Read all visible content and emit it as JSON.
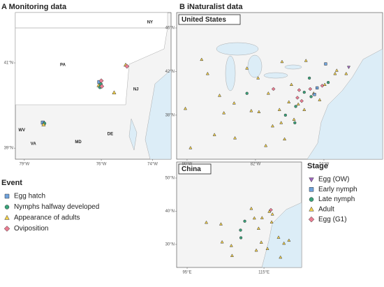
{
  "panels": [
    {
      "title": "A Monitoring data",
      "lonlim": [
        -79.35,
        -73.28
      ],
      "latlim": [
        38.74,
        42.18
      ],
      "xticks": [
        {
          "value": -79,
          "label": "79°W"
        },
        {
          "value": -76,
          "label": "76°W"
        },
        {
          "value": -74,
          "label": "74°W"
        }
      ],
      "yticks": [
        {
          "value": 41,
          "label": "41°N"
        },
        {
          "value": 39,
          "label": "39°N"
        }
      ],
      "labels": [
        {
          "text": "NY",
          "lon": -74.1,
          "lat": 41.95
        },
        {
          "text": "PA",
          "lon": -77.5,
          "lat": 40.95
        },
        {
          "text": "NJ",
          "lon": -74.65,
          "lat": 40.38
        },
        {
          "text": "WV",
          "lon": -79.1,
          "lat": 39.42
        },
        {
          "text": "VA",
          "lon": -78.65,
          "lat": 39.1
        },
        {
          "text": "MD",
          "lon": -76.9,
          "lat": 39.14
        },
        {
          "text": "DE",
          "lon": -75.65,
          "lat": 39.33
        }
      ],
      "points": [
        {
          "lon": -76.08,
          "lat": 40.55,
          "kind": "Egg hatch"
        },
        {
          "lon": -76.02,
          "lat": 40.5,
          "kind": "Nymphs halfway developed"
        },
        {
          "lon": -76.1,
          "lat": 40.47,
          "kind": "Appearance of adults"
        },
        {
          "lon": -76.0,
          "lat": 40.58,
          "kind": "Oviposition"
        },
        {
          "lon": -76.05,
          "lat": 40.43,
          "kind": "Nymphs halfway developed"
        },
        {
          "lon": -75.98,
          "lat": 40.45,
          "kind": "Oviposition"
        },
        {
          "lon": -75.05,
          "lat": 40.95,
          "kind": "Appearance of adults"
        },
        {
          "lon": -75.0,
          "lat": 40.92,
          "kind": "Oviposition"
        },
        {
          "lon": -75.5,
          "lat": 40.3,
          "kind": "Appearance of adults"
        },
        {
          "lon": -78.28,
          "lat": 39.6,
          "kind": "Egg hatch"
        },
        {
          "lon": -78.22,
          "lat": 39.58,
          "kind": "Nymphs halfway developed"
        },
        {
          "lon": -78.25,
          "lat": 39.55,
          "kind": "Appearance of adults"
        }
      ]
    },
    {
      "title": "B iNaturalist data",
      "country": "United States",
      "lonlim": [
        -91.22,
        -67.14
      ],
      "latlim": [
        33.96,
        47.41
      ],
      "xticks": [
        {
          "value": -90,
          "label": "90°W"
        },
        {
          "value": -82,
          "label": "82°W"
        },
        {
          "value": -74,
          "label": "74°W"
        }
      ],
      "yticks": [
        {
          "value": 46,
          "label": "46°N"
        },
        {
          "value": 42,
          "label": "42°N"
        },
        {
          "value": 38,
          "label": "38°N"
        }
      ],
      "points": [
        {
          "lon": -75.2,
          "lat": 40.0,
          "kind": "Adult"
        },
        {
          "lon": -75.6,
          "lat": 40.4,
          "kind": "Egg (G1)"
        },
        {
          "lon": -76.3,
          "lat": 40.1,
          "kind": "Late nymph"
        },
        {
          "lon": -74.8,
          "lat": 40.5,
          "kind": "Early nymph"
        },
        {
          "lon": -74.2,
          "lat": 40.7,
          "kind": "Egg (G1)"
        },
        {
          "lon": -73.9,
          "lat": 40.8,
          "kind": "Adult"
        },
        {
          "lon": -73.5,
          "lat": 41.0,
          "kind": "Late nymph"
        },
        {
          "lon": -77.0,
          "lat": 39.0,
          "kind": "Adult"
        },
        {
          "lon": -77.3,
          "lat": 38.8,
          "kind": "Late nymph"
        },
        {
          "lon": -76.6,
          "lat": 39.3,
          "kind": "Egg (G1)"
        },
        {
          "lon": -78.1,
          "lat": 39.2,
          "kind": "Adult"
        },
        {
          "lon": -77.5,
          "lat": 37.6,
          "kind": "Adult"
        },
        {
          "lon": -78.5,
          "lat": 38.0,
          "kind": "Late nymph"
        },
        {
          "lon": -79.0,
          "lat": 37.3,
          "kind": "Adult"
        },
        {
          "lon": -80.0,
          "lat": 37.0,
          "kind": "Adult"
        },
        {
          "lon": -79.9,
          "lat": 40.4,
          "kind": "Egg (G1)"
        },
        {
          "lon": -80.5,
          "lat": 40.0,
          "kind": "Adult"
        },
        {
          "lon": -81.7,
          "lat": 41.4,
          "kind": "Adult"
        },
        {
          "lon": -83.0,
          "lat": 40.0,
          "kind": "Late nymph"
        },
        {
          "lon": -84.5,
          "lat": 39.1,
          "kind": "Adult"
        },
        {
          "lon": -86.2,
          "lat": 39.8,
          "kind": "Adult"
        },
        {
          "lon": -87.6,
          "lat": 41.8,
          "kind": "Adult"
        },
        {
          "lon": -83.0,
          "lat": 42.3,
          "kind": "Adult"
        },
        {
          "lon": -78.9,
          "lat": 42.9,
          "kind": "Adult"
        },
        {
          "lon": -76.1,
          "lat": 43.0,
          "kind": "Adult"
        },
        {
          "lon": -73.8,
          "lat": 42.7,
          "kind": "Early nymph"
        },
        {
          "lon": -72.7,
          "lat": 41.8,
          "kind": "Adult"
        },
        {
          "lon": -71.4,
          "lat": 41.8,
          "kind": "Adult"
        },
        {
          "lon": -71.1,
          "lat": 42.4,
          "kind": "Egg (OW)"
        },
        {
          "lon": -72.5,
          "lat": 42.1,
          "kind": "Adult"
        },
        {
          "lon": -75.5,
          "lat": 39.7,
          "kind": "Late nymph"
        },
        {
          "lon": -76.9,
          "lat": 40.3,
          "kind": "Egg (G1)"
        },
        {
          "lon": -77.8,
          "lat": 40.8,
          "kind": "Adult"
        },
        {
          "lon": -76.3,
          "lat": 38.5,
          "kind": "Adult"
        },
        {
          "lon": -77.4,
          "lat": 37.3,
          "kind": "Late nymph"
        },
        {
          "lon": -78.6,
          "lat": 35.8,
          "kind": "Adult"
        },
        {
          "lon": -80.8,
          "lat": 35.2,
          "kind": "Adult"
        },
        {
          "lon": -84.4,
          "lat": 35.9,
          "kind": "Adult"
        },
        {
          "lon": -86.8,
          "lat": 36.2,
          "kind": "Adult"
        },
        {
          "lon": -82.5,
          "lat": 38.4,
          "kind": "Adult"
        },
        {
          "lon": -81.6,
          "lat": 38.3,
          "kind": "Adult"
        },
        {
          "lon": -74.5,
          "lat": 39.4,
          "kind": "Adult"
        },
        {
          "lon": -75.1,
          "lat": 39.9,
          "kind": "Early nymph"
        },
        {
          "lon": -77.1,
          "lat": 39.6,
          "kind": "Egg (G1)"
        },
        {
          "lon": -79.2,
          "lat": 38.5,
          "kind": "Adult"
        },
        {
          "lon": -88.3,
          "lat": 43.1,
          "kind": "Adult"
        },
        {
          "lon": -90.2,
          "lat": 38.6,
          "kind": "Adult"
        },
        {
          "lon": -85.7,
          "lat": 38.2,
          "kind": "Adult"
        },
        {
          "lon": -89.6,
          "lat": 35.0,
          "kind": "Adult"
        },
        {
          "lon": -75.7,
          "lat": 41.4,
          "kind": "Late nymph"
        }
      ]
    },
    {
      "country": "China",
      "lonlim": [
        92.27,
        124.8
      ],
      "latlim": [
        23.05,
        54.84
      ],
      "xticks": [
        {
          "value": 95,
          "label": "95°E"
        },
        {
          "value": 115,
          "label": "115°E"
        }
      ],
      "yticks": [
        {
          "value": 50,
          "label": "50°N"
        },
        {
          "value": 40,
          "label": "40°N"
        },
        {
          "value": 30,
          "label": "30°N"
        }
      ],
      "points": [
        {
          "lon": 116.4,
          "lat": 39.9,
          "kind": "Adult"
        },
        {
          "lon": 116.8,
          "lat": 40.4,
          "kind": "Egg (G1)"
        },
        {
          "lon": 117.2,
          "lat": 39.1,
          "kind": "Adult"
        },
        {
          "lon": 112.5,
          "lat": 37.9,
          "kind": "Adult"
        },
        {
          "lon": 113.6,
          "lat": 34.8,
          "kind": "Adult"
        },
        {
          "lon": 108.9,
          "lat": 34.3,
          "kind": "Late nymph"
        },
        {
          "lon": 106.5,
          "lat": 29.6,
          "kind": "Adult"
        },
        {
          "lon": 104.1,
          "lat": 30.7,
          "kind": "Adult"
        },
        {
          "lon": 114.3,
          "lat": 30.6,
          "kind": "Adult"
        },
        {
          "lon": 118.8,
          "lat": 32.1,
          "kind": "Adult"
        },
        {
          "lon": 120.2,
          "lat": 30.3,
          "kind": "Adult"
        },
        {
          "lon": 121.5,
          "lat": 31.2,
          "kind": "Adult"
        },
        {
          "lon": 117.0,
          "lat": 36.7,
          "kind": "Adult"
        },
        {
          "lon": 111.7,
          "lat": 40.8,
          "kind": "Adult"
        },
        {
          "lon": 103.8,
          "lat": 36.1,
          "kind": "Adult"
        },
        {
          "lon": 100.0,
          "lat": 36.6,
          "kind": "Adult"
        },
        {
          "lon": 110.0,
          "lat": 37.0,
          "kind": "Late nymph"
        },
        {
          "lon": 113.0,
          "lat": 28.2,
          "kind": "Adult"
        },
        {
          "lon": 115.9,
          "lat": 28.7,
          "kind": "Adult"
        },
        {
          "lon": 109.0,
          "lat": 32.0,
          "kind": "Late nymph"
        },
        {
          "lon": 114.5,
          "lat": 38.0,
          "kind": "Adult"
        },
        {
          "lon": 106.7,
          "lat": 26.6,
          "kind": "Adult"
        },
        {
          "lon": 119.3,
          "lat": 26.1,
          "kind": "Adult"
        }
      ]
    }
  ],
  "event_legend": {
    "title": "Event",
    "items": [
      "Egg hatch",
      "Nymphs halfway developed",
      "Appearance of adults",
      "Oviposition"
    ]
  },
  "stage_legend": {
    "title": "Stage",
    "items": [
      "Egg (OW)",
      "Early nymph",
      "Late nymph",
      "Adult",
      "Egg (G1)"
    ]
  }
}
